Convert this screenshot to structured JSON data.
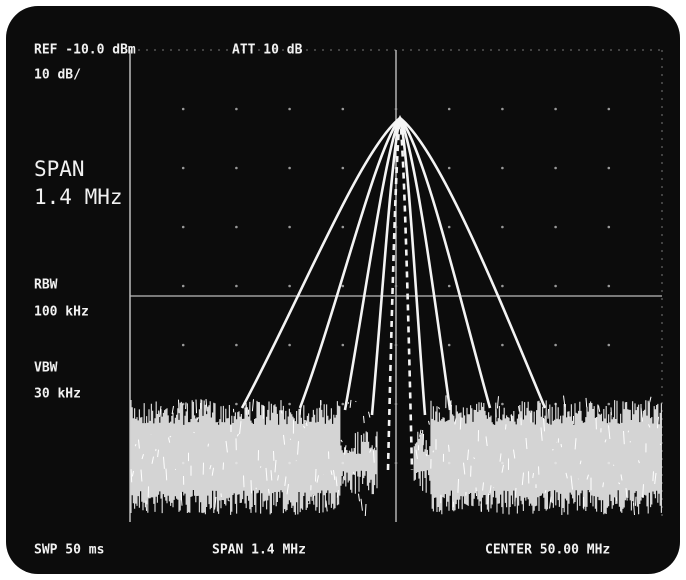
{
  "header": {
    "ref": "REF -10.0 dBm",
    "att": "ATT 10 dB",
    "scale": "10 dB/"
  },
  "side": {
    "span_label": "SPAN",
    "span_value": "1.4 MHz",
    "rbw_label": "RBW",
    "rbw_value": "100 kHz",
    "vbw_label": "VBW",
    "vbw_value": "30 kHz"
  },
  "footer": {
    "sweep": "SWP 50 ms",
    "span": "SPAN 1.4 MHz",
    "center": "CENTER 50.00 MHz"
  }
}
